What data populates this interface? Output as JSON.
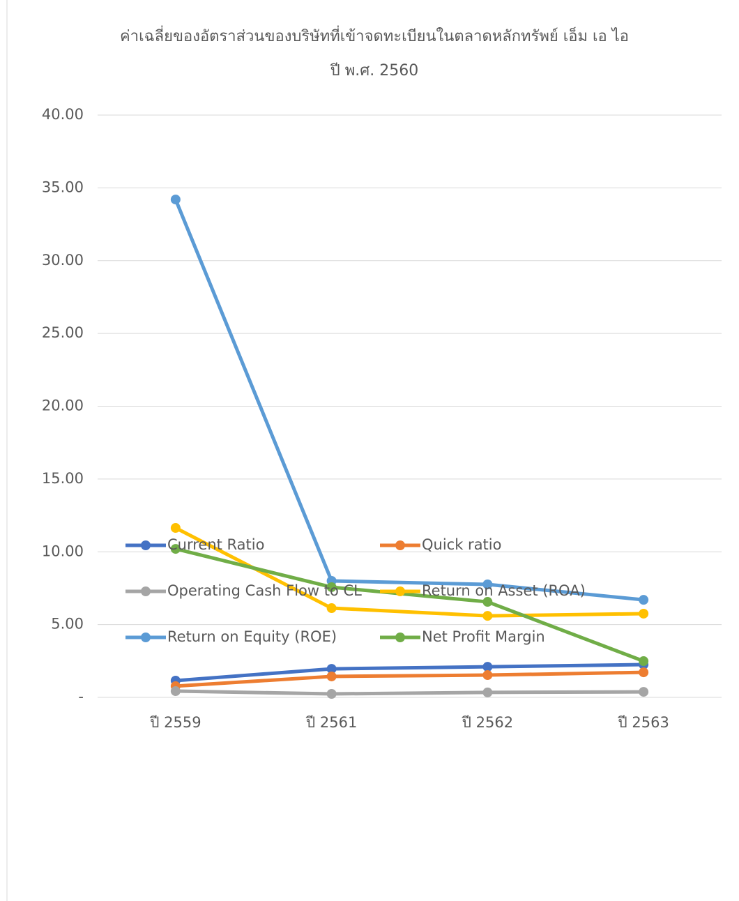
{
  "chart_data": {
    "type": "line",
    "title": "ค่าเฉลี่ยของอัตราส่วนของบริษัทที่เข้าจดทะเบียนในตลาดหลักทรัพย์ เอ็ม เอ ไอ",
    "subtitle": "ปี พ.ศ. 2560",
    "categories": [
      "ปี 2559",
      "ปี 2561",
      "ปี 2562",
      "ปี 2563"
    ],
    "series": [
      {
        "name": "Current Ratio",
        "color": "#4472c4",
        "values": [
          1.15,
          1.96,
          2.1,
          2.25
        ]
      },
      {
        "name": "Quick ratio",
        "color": "#ed7d31",
        "values": [
          0.77,
          1.44,
          1.53,
          1.72
        ]
      },
      {
        "name": "Operating Cash Flow to CL",
        "color": "#a5a5a5",
        "values": [
          0.43,
          0.24,
          0.34,
          0.38
        ]
      },
      {
        "name": "Return on Asset (ROA)",
        "color": "#ffc000",
        "values": [
          11.64,
          6.13,
          5.6,
          5.75
        ]
      },
      {
        "name": "Return on Equity (ROE)",
        "color": "#5b9bd5",
        "values": [
          34.2,
          8.0,
          7.76,
          6.7
        ]
      },
      {
        "name": "Net Profit Margin",
        "color": "#70ad47",
        "values": [
          10.2,
          7.57,
          6.56,
          2.49
        ]
      }
    ],
    "ylim": [
      0,
      40
    ],
    "yticks": [
      {
        "value": 0,
        "label": "-"
      },
      {
        "value": 5,
        "label": "5.00"
      },
      {
        "value": 10,
        "label": "10.00"
      },
      {
        "value": 15,
        "label": "15.00"
      },
      {
        "value": 20,
        "label": "20.00"
      },
      {
        "value": 25,
        "label": "25.00"
      },
      {
        "value": 30,
        "label": "30.00"
      },
      {
        "value": 35,
        "label": "35.00"
      },
      {
        "value": 40,
        "label": "40.00"
      }
    ],
    "grid": true,
    "legend": "bottom"
  }
}
